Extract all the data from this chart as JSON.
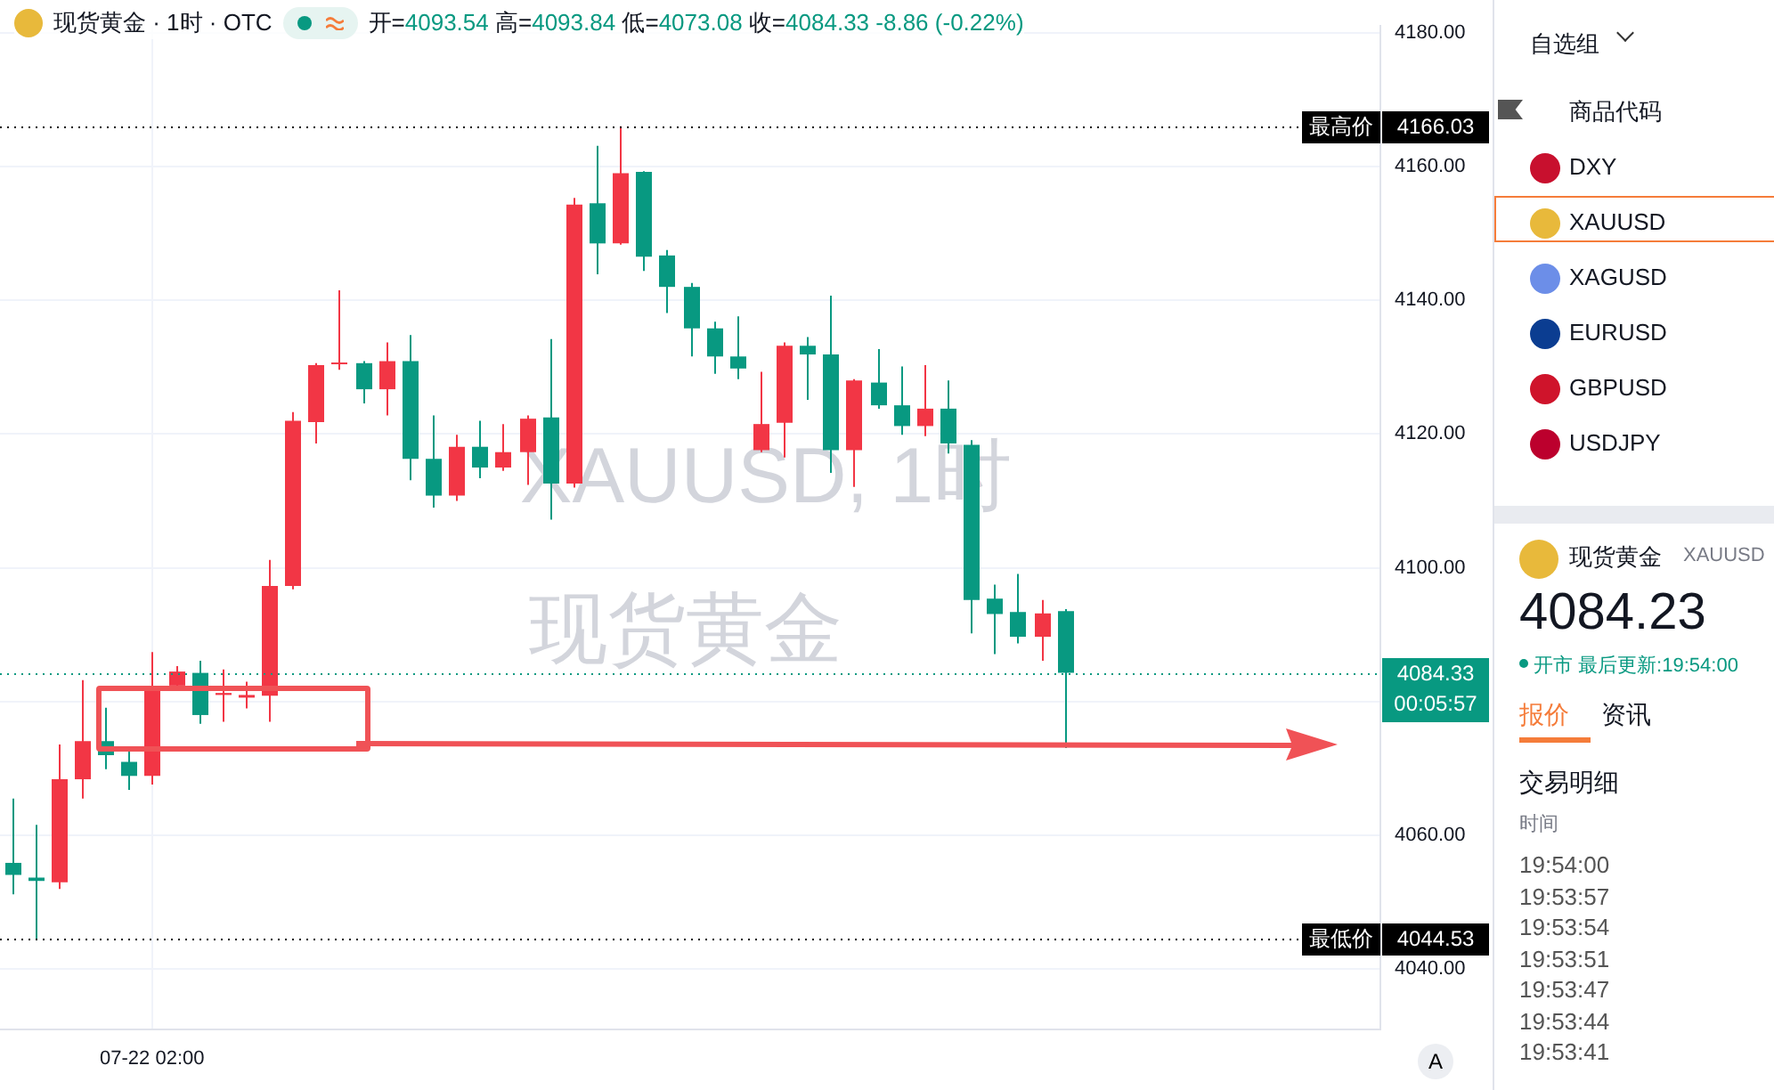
{
  "chart_data": {
    "type": "candlestick",
    "title": "现货黄金 · 1时 · OTC",
    "subtitle": "开=4093.54 高=4093.84 低=4073.08 收=4084.33 -8.86 (-0.22%)",
    "categories": [
      null,
      null,
      null,
      null,
      null,
      null,
      "07-22 02:00",
      null,
      null,
      null,
      null,
      null,
      null,
      null,
      null,
      null,
      null,
      null,
      null,
      null,
      null,
      null,
      null,
      null,
      null,
      null,
      null,
      null,
      null,
      null,
      null,
      null,
      null,
      null,
      null,
      null,
      null,
      null,
      null,
      null,
      null,
      null,
      null,
      null,
      null,
      null,
      null,
      null,
      null,
      null,
      null,
      null,
      null,
      null,
      null,
      null,
      null,
      null,
      null
    ],
    "ohlc": [
      [
        4055.9,
        4065.5,
        4051.2,
        4054.1
      ],
      [
        4053.7,
        4061.6,
        4044.53,
        4053.2
      ],
      [
        4053.0,
        4073.6,
        4052.0,
        4068.4
      ],
      [
        4068.4,
        4083.2,
        4065.5,
        4074.1
      ],
      [
        4074.1,
        4079.1,
        4069.9,
        4072.0
      ],
      [
        4071.0,
        4072.8,
        4066.8,
        4068.9
      ],
      [
        4068.9,
        4087.4,
        4067.6,
        4082.2
      ],
      [
        4082.4,
        4085.3,
        4082.0,
        4084.5
      ],
      [
        4084.3,
        4086.1,
        4076.7,
        4078.0
      ],
      [
        4081.0,
        4084.8,
        4077.0,
        4081.3
      ],
      [
        4080.6,
        4083.0,
        4079.0,
        4081.0
      ],
      [
        4080.9,
        4101.2,
        4077.0,
        4097.3
      ],
      [
        4097.3,
        4123.3,
        4096.8,
        4122.0
      ],
      [
        4121.8,
        4130.6,
        4118.6,
        4130.3
      ],
      [
        4130.5,
        4141.5,
        4129.6,
        4130.7
      ],
      [
        4130.6,
        4130.9,
        4124.6,
        4126.7
      ],
      [
        4126.7,
        4133.7,
        4122.8,
        4130.9
      ],
      [
        4130.9,
        4134.8,
        4113.1,
        4116.3
      ],
      [
        4116.3,
        4122.8,
        4109.0,
        4110.8
      ],
      [
        4110.8,
        4119.9,
        4110.0,
        4118.1
      ],
      [
        4118.1,
        4122.0,
        4113.4,
        4115.0
      ],
      [
        4115.0,
        4121.5,
        4114.5,
        4117.3
      ],
      [
        4117.3,
        4122.8,
        4112.4,
        4122.3
      ],
      [
        4122.5,
        4134.2,
        4107.2,
        4112.6
      ],
      [
        4112.6,
        4155.3,
        4112.0,
        4154.3
      ],
      [
        4154.5,
        4163.1,
        4143.9,
        4148.5
      ],
      [
        4148.5,
        4166.03,
        4148.3,
        4159.0
      ],
      [
        4159.2,
        4159.3,
        4144.4,
        4146.5
      ],
      [
        4146.7,
        4147.5,
        4138.1,
        4142.0
      ],
      [
        4142.0,
        4142.6,
        4131.6,
        4135.8
      ],
      [
        4135.8,
        4136.8,
        4129.0,
        4131.6
      ],
      [
        4131.6,
        4137.6,
        4128.2,
        4129.8
      ],
      [
        4117.6,
        4129.3,
        4117.3,
        4121.5
      ],
      [
        4121.7,
        4133.7,
        4116.5,
        4133.2
      ],
      [
        4133.2,
        4134.5,
        4125.1,
        4131.9
      ],
      [
        4131.9,
        4140.7,
        4114.2,
        4117.6
      ],
      [
        4117.6,
        4128.2,
        4112.1,
        4128.0
      ],
      [
        4127.7,
        4132.7,
        4123.8,
        4124.3
      ],
      [
        4124.3,
        4130.1,
        4119.9,
        4121.2
      ],
      [
        4121.2,
        4130.3,
        4119.7,
        4123.8
      ],
      [
        4123.8,
        4128.0,
        4117.1,
        4118.6
      ],
      [
        4118.4,
        4119.1,
        4090.2,
        4095.2
      ],
      [
        4095.4,
        4097.5,
        4087.1,
        4093.1
      ],
      [
        4093.4,
        4099.1,
        4088.7,
        4089.7
      ],
      [
        4089.7,
        4095.2,
        4086.1,
        4093.19
      ],
      [
        4093.54,
        4093.84,
        4073.08,
        4084.33
      ],
      null,
      null,
      null,
      null,
      null,
      null,
      null,
      null,
      null,
      null,
      null,
      null,
      null
    ],
    "colors": [
      "#089981",
      "#089981",
      "#f23645",
      "#f23645",
      "#089981",
      "#089981",
      "#f23645",
      "#f23645",
      "#089981",
      "#f23645",
      "#f23645",
      "#f23645",
      "#f23645",
      "#f23645",
      "#f23645",
      "#089981",
      "#f23645",
      "#089981",
      "#089981",
      "#f23645",
      "#089981",
      "#f23645",
      "#f23645",
      "#089981",
      "#f23645",
      "#089981",
      "#f23645",
      "#089981",
      "#089981",
      "#089981",
      "#089981",
      "#089981",
      "#f23645",
      "#f23645",
      "#089981",
      "#089981",
      "#f23645",
      "#089981",
      "#089981",
      "#f23645",
      "#089981",
      "#089981",
      "#089981",
      "#089981",
      "#f23645",
      "#089981",
      null,
      null,
      null,
      null,
      null,
      null,
      null,
      null,
      null,
      null,
      null,
      null,
      null
    ],
    "ylim": [
      4031,
      4181
    ],
    "yticks": [
      {
        "value": 4040,
        "label": "4040.00"
      },
      {
        "value": 4060,
        "label": "4060.00"
      },
      {
        "value": 4080,
        "label": null
      },
      {
        "value": 4100,
        "label": "4100.00"
      },
      {
        "value": 4120,
        "label": "4120.00"
      },
      {
        "value": 4140,
        "label": "4140.00"
      },
      {
        "value": 4160,
        "label": "4160.00"
      },
      {
        "value": 4180,
        "label": "4180.00"
      }
    ],
    "grid": true,
    "ref_lines": [
      {
        "axis": "y",
        "value": 4084.33,
        "color": "#089981",
        "line_style": "dotted"
      },
      {
        "axis": "y",
        "value": 4166.03,
        "label": "最高价",
        "color": "#000000",
        "line_style": "dotted"
      },
      {
        "axis": "y",
        "value": 4044.53,
        "label": "最低价",
        "color": "#000000",
        "line_style": "dotted"
      }
    ],
    "annotations": [
      "XAUUSD, 1时",
      "现货黄金",
      "自选组",
      "商品代码",
      "DXY",
      "XAUUSD",
      "XAGUSD",
      "EURUSD",
      "GBPUSD",
      "USDJPY",
      "现货黄金",
      "XAUUSD",
      "4084.23",
      "开市 最后更新:19:54:00",
      "报价",
      "资讯",
      "交易明细",
      "时间",
      "19:54:00",
      "19:53:57",
      "19:53:54",
      "19:53:51",
      "19:53:47",
      "19:53:44",
      "19:53:41",
      "A",
      "4166.03",
      "4084.33",
      "00:05:57",
      "4044.53"
    ]
  }
}
